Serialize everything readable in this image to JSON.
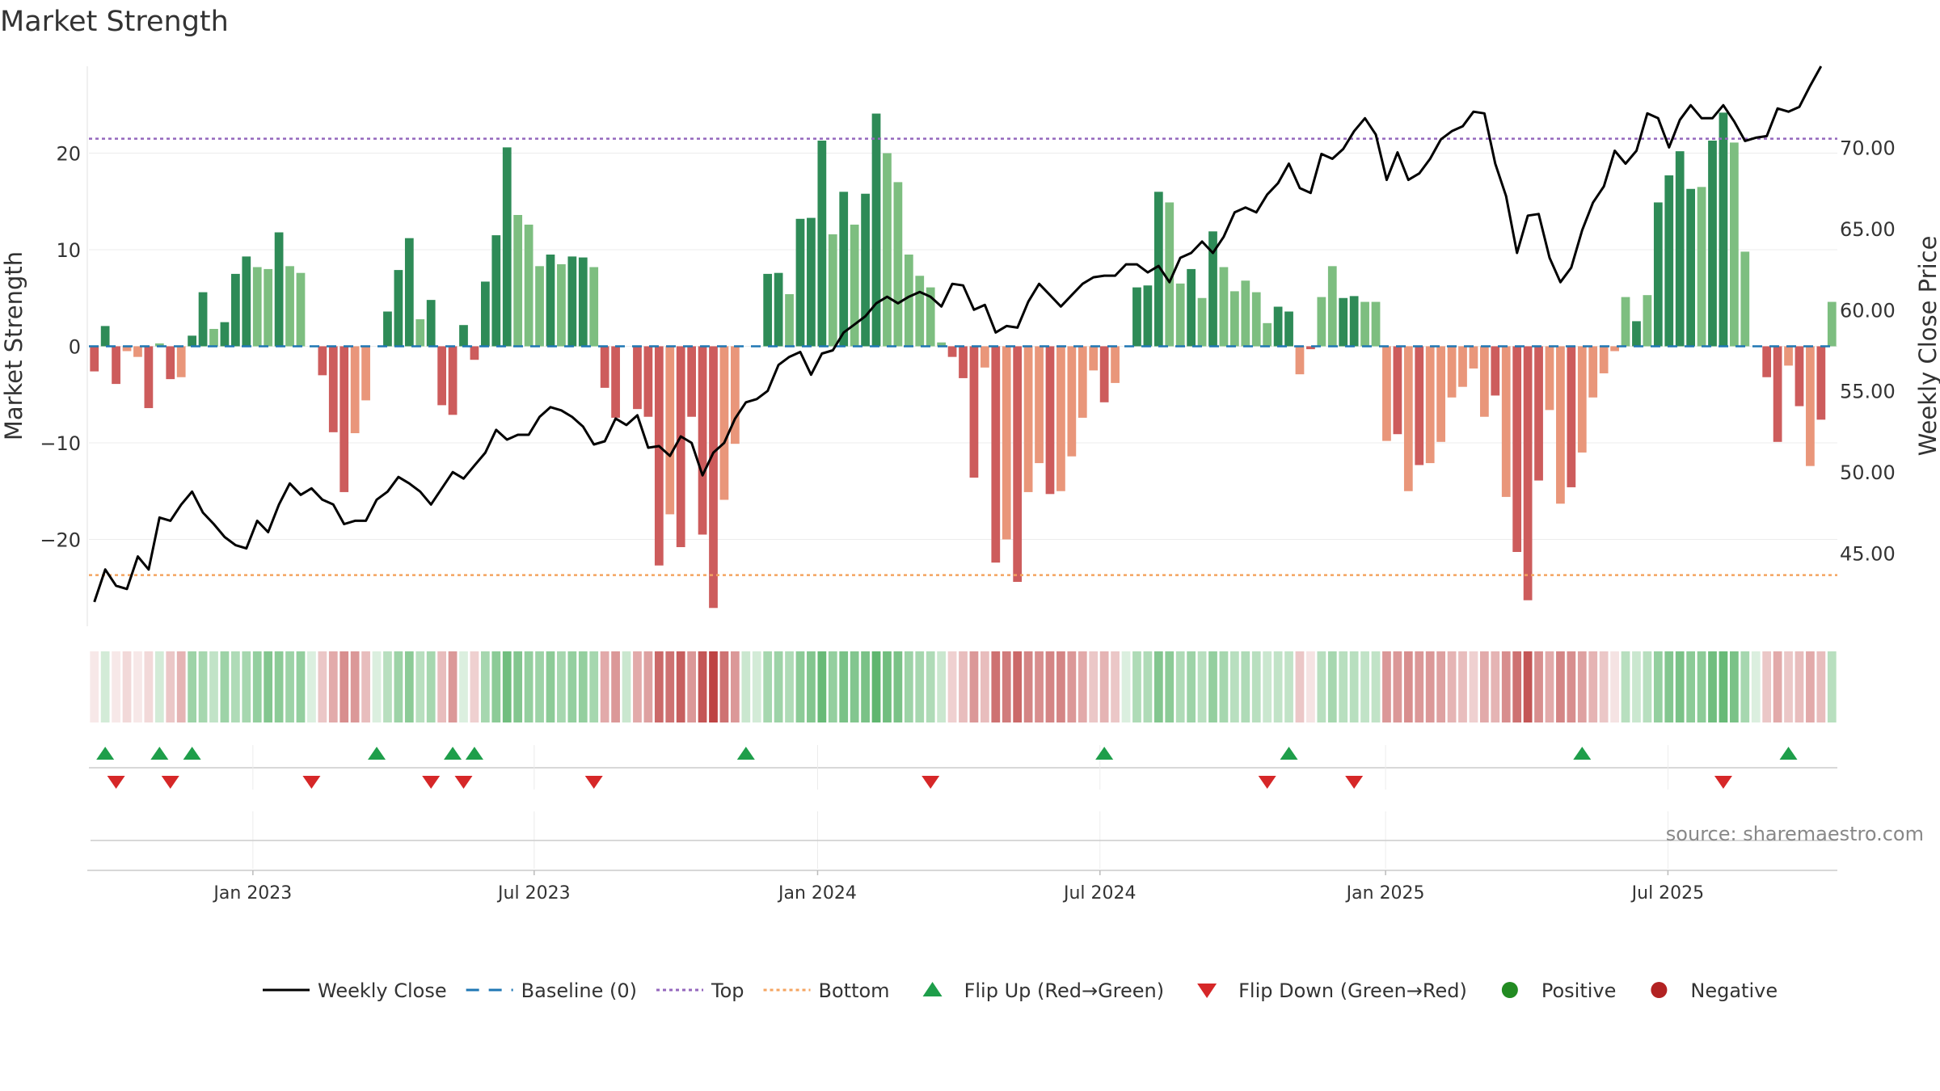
{
  "chart_data": {
    "type": "bar",
    "title": "Market Strength",
    "ylabel_left": "Market Strength",
    "ylabel_right": "Weekly Close Price",
    "ylim_left": [
      -29,
      29
    ],
    "ylim_right": [
      40.5,
      75
    ],
    "yticks_left": [
      20,
      10,
      0,
      -10,
      -20
    ],
    "yticks_left_labels": [
      "20",
      "10",
      "0",
      "−10",
      "−20"
    ],
    "yticks_right": [
      70,
      65,
      60,
      55,
      50,
      45
    ],
    "yticks_right_labels": [
      "70.00",
      "65.00",
      "60.00",
      "55.00",
      "50.00",
      "45.00"
    ],
    "x_ticks": [
      {
        "label": "Jan 2023",
        "week": 14.6
      },
      {
        "label": "Jul 2023",
        "week": 40.5
      },
      {
        "label": "Jan 2024",
        "week": 66.6
      },
      {
        "label": "Jul 2024",
        "week": 92.6
      },
      {
        "label": "Jan 2025",
        "week": 118.9
      },
      {
        "label": "Jul 2025",
        "week": 144.9
      }
    ],
    "top_level": 21.5,
    "bottom_level": -23.7,
    "source": "source: sharemaestro.com",
    "colors": {
      "pos_strong": "#2e8b57",
      "pos_weak": "#7dbe80",
      "neg_strong": "#cd5c5c",
      "neg_weak": "#e9967a",
      "close": "#000000",
      "baseline": "#1f77b4",
      "top": "#9467bd",
      "bottom": "#f4a460",
      "flip_up": "#1e9e4a",
      "flip_down": "#d62728",
      "positive": "#228b22",
      "negative": "#b22222"
    },
    "strength": [
      -2.6,
      2.1,
      -3.9,
      -0.5,
      -1.1,
      -6.4,
      0.3,
      -3.4,
      -3.2,
      1.1,
      5.6,
      1.8,
      2.5,
      7.5,
      9.3,
      8.2,
      8.0,
      11.8,
      8.3,
      7.6,
      0,
      -3.0,
      -8.9,
      -15.1,
      -9.0,
      -5.6,
      0,
      3.6,
      7.9,
      11.2,
      2.8,
      4.8,
      -6.1,
      -7.1,
      2.2,
      -1.4,
      6.7,
      11.5,
      20.6,
      13.6,
      12.6,
      8.3,
      9.5,
      8.5,
      9.3,
      9.2,
      8.2,
      -4.3,
      -7.4,
      0,
      -6.5,
      -7.3,
      -22.7,
      -17.4,
      -20.8,
      -7.3,
      -19.5,
      -27.1,
      -15.9,
      -10.1,
      0,
      0,
      7.5,
      7.6,
      5.4,
      13.2,
      13.3,
      21.3,
      11.6,
      16.0,
      12.6,
      15.8,
      24.1,
      20.0,
      17.0,
      9.5,
      7.3,
      6.1,
      0.4,
      -1.1,
      -3.3,
      -13.6,
      -2.2,
      -22.4,
      -20.0,
      -24.4,
      -15.1,
      -12.1,
      -15.3,
      -15.0,
      -11.4,
      -7.4,
      -2.5,
      -5.8,
      -3.8,
      0,
      6.1,
      6.3,
      16.0,
      14.9,
      6.5,
      8.0,
      5.0,
      11.9,
      8.2,
      5.7,
      6.8,
      5.6,
      2.4,
      4.1,
      3.6,
      -2.9,
      -0.3,
      5.1,
      8.3,
      5.0,
      5.2,
      4.6,
      4.6,
      -9.8,
      -9.1,
      -15.0,
      -12.3,
      -12.1,
      -9.9,
      -5.3,
      -4.2,
      -2.3,
      -7.3,
      -5.1,
      -15.6,
      -21.3,
      -26.3,
      -13.9,
      -6.6,
      -16.3,
      -14.6,
      -11.0,
      -5.3,
      -2.8,
      -0.5,
      5.1,
      2.6,
      5.3,
      14.9,
      17.7,
      20.2,
      16.3,
      16.5,
      21.3,
      24.2,
      21.1,
      9.8,
      0,
      -3.2,
      -9.9,
      -2.0,
      -6.2,
      -12.4,
      -7.6,
      4.6
    ],
    "strength_shade": [
      2,
      2,
      2,
      1,
      1,
      2,
      1,
      2,
      1,
      2,
      2,
      1,
      2,
      2,
      2,
      1,
      1,
      2,
      1,
      1,
      2,
      2,
      2,
      2,
      1,
      1,
      2,
      2,
      2,
      2,
      1,
      2,
      2,
      2,
      2,
      2,
      2,
      2,
      2,
      1,
      1,
      1,
      2,
      1,
      2,
      2,
      1,
      2,
      2,
      2,
      2,
      2,
      2,
      1,
      2,
      2,
      2,
      2,
      1,
      1,
      2,
      2,
      2,
      2,
      1,
      2,
      2,
      2,
      1,
      2,
      1,
      2,
      2,
      1,
      1,
      1,
      1,
      1,
      1,
      2,
      2,
      2,
      1,
      2,
      1,
      2,
      1,
      1,
      2,
      1,
      1,
      1,
      1,
      2,
      1,
      2,
      2,
      2,
      2,
      1,
      1,
      2,
      1,
      2,
      1,
      1,
      1,
      1,
      1,
      2,
      2,
      1,
      2,
      1,
      1,
      2,
      2,
      1,
      1,
      1,
      2,
      1,
      2,
      1,
      1,
      1,
      1,
      1,
      1,
      2,
      1,
      2,
      2,
      2,
      1,
      1,
      2,
      1,
      1,
      1,
      1,
      1,
      2,
      1,
      2,
      2,
      2,
      2,
      1,
      2,
      2,
      1,
      1,
      2,
      2,
      2,
      1,
      2,
      1,
      2,
      1,
      2
    ],
    "close": [
      42.0,
      44.0,
      43.0,
      42.8,
      44.8,
      44.0,
      47.2,
      47.0,
      48.0,
      48.8,
      47.5,
      46.8,
      46.0,
      45.5,
      45.3,
      47.0,
      46.3,
      48.0,
      49.3,
      48.6,
      49.0,
      48.3,
      48.0,
      46.8,
      47.0,
      47.0,
      48.3,
      48.8,
      49.7,
      49.3,
      48.8,
      48.0,
      49.0,
      50.0,
      49.6,
      50.4,
      51.2,
      52.6,
      52.0,
      52.3,
      52.3,
      53.4,
      54.0,
      53.8,
      53.4,
      52.8,
      51.7,
      51.9,
      53.3,
      52.9,
      53.5,
      51.5,
      51.6,
      51.0,
      52.2,
      51.8,
      49.8,
      51.2,
      51.8,
      53.3,
      54.3,
      54.5,
      55.0,
      56.6,
      57.1,
      57.4,
      56.0,
      57.3,
      57.5,
      58.6,
      59.1,
      59.6,
      60.4,
      60.8,
      60.4,
      60.8,
      61.1,
      60.8,
      60.2,
      61.6,
      61.5,
      60.0,
      60.3,
      58.6,
      59.0,
      58.9,
      60.5,
      61.6,
      60.9,
      60.2,
      60.9,
      61.6,
      62.0,
      62.1,
      62.1,
      62.8,
      62.8,
      62.3,
      62.7,
      61.7,
      63.2,
      63.5,
      64.2,
      63.5,
      64.5,
      66.0,
      66.3,
      66.0,
      67.1,
      67.8,
      69.0,
      67.5,
      67.2,
      69.6,
      69.3,
      69.9,
      71.0,
      71.8,
      70.8,
      68.0,
      69.7,
      68.0,
      68.4,
      69.3,
      70.5,
      71.0,
      71.3,
      72.2,
      72.1,
      69.0,
      67.0,
      63.5,
      65.8,
      65.9,
      63.2,
      61.7,
      62.6,
      64.9,
      66.6,
      67.6,
      69.8,
      69.0,
      69.8,
      72.1,
      71.8,
      70.0,
      71.7,
      72.6,
      71.8,
      71.8,
      72.6,
      71.6,
      70.4,
      70.6,
      70.7,
      72.4,
      72.2,
      72.5,
      73.8,
      75.0
    ],
    "pos_indicator_1": [
      0.1,
      0.25,
      0.1,
      0.2,
      0.1,
      0.2,
      0.25,
      0.3,
      0.4,
      0.55,
      0.5,
      0.35,
      0.55,
      0.45,
      0.5,
      0.6,
      0.7,
      0.65,
      0.55,
      0.6,
      0.2,
      0.3,
      0.45,
      0.6,
      0.55,
      0.35,
      0.2,
      0.4,
      0.55,
      0.65,
      0.4,
      0.5,
      0.35,
      0.55,
      0.2,
      0.25,
      0.5,
      0.65,
      0.8,
      0.7,
      0.6,
      0.55,
      0.65,
      0.5,
      0.6,
      0.6,
      0.5,
      0.45,
      0.55,
      0.3,
      0.45,
      0.5,
      0.8,
      0.75,
      0.85,
      0.55,
      0.9,
      1.0,
      0.75,
      0.55,
      0.3,
      0.25,
      0.5,
      0.55,
      0.45,
      0.65,
      0.7,
      0.85,
      0.6,
      0.75,
      0.7,
      0.75,
      0.9,
      0.8,
      0.75,
      0.55,
      0.5,
      0.45,
      0.3,
      0.25,
      0.35,
      0.55,
      0.35,
      0.75,
      0.7,
      0.8,
      0.65,
      0.6,
      0.65,
      0.65,
      0.55,
      0.45,
      0.3,
      0.4,
      0.3,
      0.2,
      0.45,
      0.45,
      0.7,
      0.65,
      0.45,
      0.55,
      0.4,
      0.6,
      0.5,
      0.4,
      0.45,
      0.4,
      0.3,
      0.35,
      0.35,
      0.3,
      0.15,
      0.4,
      0.5,
      0.4,
      0.4,
      0.35,
      0.35,
      0.55,
      0.55,
      0.6,
      0.55,
      0.55,
      0.5,
      0.4,
      0.35,
      0.25,
      0.45,
      0.4,
      0.6,
      0.75,
      0.9,
      0.6,
      0.45,
      0.65,
      0.6,
      0.5,
      0.4,
      0.3,
      0.15,
      0.4,
      0.3,
      0.4,
      0.6,
      0.7,
      0.75,
      0.65,
      0.65,
      0.8,
      0.85,
      0.75,
      0.5,
      0.2,
      0.3,
      0.45,
      0.3,
      0.35,
      0.45,
      0.35,
      0.4
    ],
    "flip_up_weeks": [
      1,
      6,
      9,
      26,
      33,
      35,
      60,
      93,
      110,
      137,
      156
    ],
    "flip_down_weeks": [
      2,
      7,
      20,
      31,
      34,
      46,
      77,
      108,
      116,
      150
    ],
    "legend": [
      {
        "label": "Weekly Close",
        "kind": "line"
      },
      {
        "label": "Baseline (0)",
        "kind": "dash"
      },
      {
        "label": "Top",
        "kind": "dot_top"
      },
      {
        "label": "Bottom",
        "kind": "dot_bottom"
      },
      {
        "label": "Flip Up (Red→Green)",
        "kind": "tri_up"
      },
      {
        "label": "Flip Down (Green→Red)",
        "kind": "tri_down"
      },
      {
        "label": "Positive",
        "kind": "dot_pos"
      },
      {
        "label": "Negative",
        "kind": "dot_neg"
      }
    ]
  }
}
